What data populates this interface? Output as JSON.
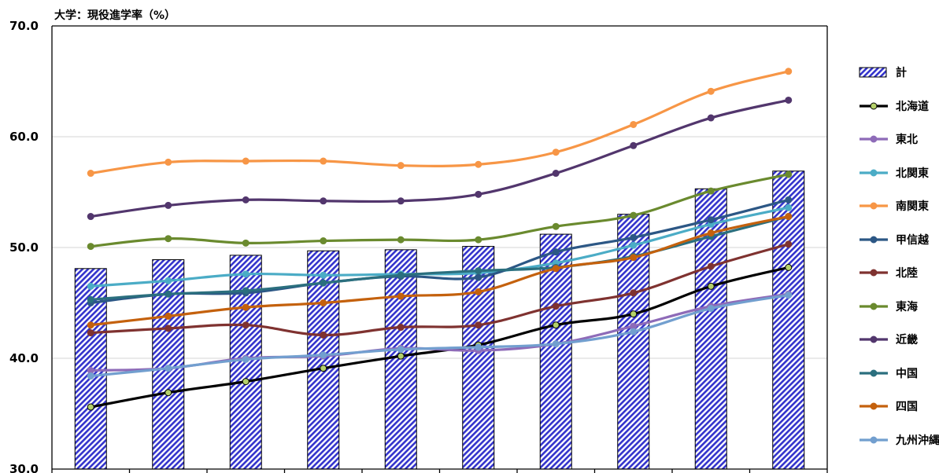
{
  "chart_data": {
    "type": "bar+line",
    "title": "大学：現役進学率（%）",
    "ylabel": "大学：現役進学率（%）",
    "ylim": [
      30,
      70
    ],
    "yticks": [
      "30.0",
      "40.0",
      "50.0",
      "60.0",
      "70.0"
    ],
    "grid": true,
    "legend_position": "right",
    "categories": [
      "",
      "",
      "",
      "",
      "",
      "",
      "",
      "",
      "",
      ""
    ],
    "bar_series": {
      "name": "計",
      "color": "#3333cc",
      "values": [
        48.1,
        48.9,
        49.3,
        49.7,
        49.8,
        50.1,
        51.2,
        53.0,
        55.3,
        56.9
      ]
    },
    "series": [
      {
        "name": "北海道",
        "color": "#000000",
        "marker_fill": "#b5d16a",
        "values": [
          35.6,
          36.9,
          37.9,
          39.1,
          40.2,
          41.2,
          43.0,
          44.0,
          46.5,
          48.2
        ]
      },
      {
        "name": "東北",
        "color": "#8e6bb8",
        "values": [
          38.9,
          39.1,
          40.0,
          40.2,
          40.9,
          40.7,
          41.3,
          42.9,
          44.7,
          45.8
        ]
      },
      {
        "name": "北関東",
        "color": "#4bacc6",
        "values": [
          46.5,
          47.0,
          47.6,
          47.5,
          47.6,
          47.7,
          48.6,
          50.2,
          52.1,
          53.6
        ]
      },
      {
        "name": "南関東",
        "color": "#f79646",
        "values": [
          56.7,
          57.7,
          57.8,
          57.8,
          57.4,
          57.5,
          58.6,
          61.1,
          64.1,
          65.9
        ]
      },
      {
        "name": "甲信越",
        "color": "#2c5785",
        "values": [
          45.0,
          45.8,
          45.9,
          46.8,
          47.4,
          47.3,
          49.6,
          50.9,
          52.5,
          54.3
        ]
      },
      {
        "name": "北陸",
        "color": "#7f3230",
        "values": [
          42.3,
          42.7,
          43.0,
          42.1,
          42.8,
          43.0,
          44.7,
          45.9,
          48.3,
          50.3
        ]
      },
      {
        "name": "東海",
        "color": "#6a8a2e",
        "values": [
          50.1,
          50.8,
          50.4,
          50.6,
          50.7,
          50.7,
          51.9,
          52.9,
          55.1,
          56.6
        ]
      },
      {
        "name": "近畿",
        "color": "#52366d",
        "values": [
          52.8,
          53.8,
          54.3,
          54.2,
          54.2,
          54.8,
          56.7,
          59.2,
          61.7,
          63.3
        ]
      },
      {
        "name": "中国",
        "color": "#2b6f7e",
        "values": [
          45.3,
          45.8,
          46.1,
          46.8,
          47.5,
          47.9,
          48.2,
          49.2,
          51.0,
          52.8
        ]
      },
      {
        "name": "四国",
        "color": "#c4610d",
        "values": [
          43.0,
          43.8,
          44.6,
          45.0,
          45.6,
          46.0,
          48.1,
          49.1,
          51.3,
          52.8
        ]
      },
      {
        "name": "九州沖縄",
        "color": "#729fcf",
        "values": [
          38.4,
          39.1,
          39.9,
          40.3,
          40.8,
          41.0,
          41.3,
          42.4,
          44.5,
          45.7
        ]
      }
    ]
  }
}
